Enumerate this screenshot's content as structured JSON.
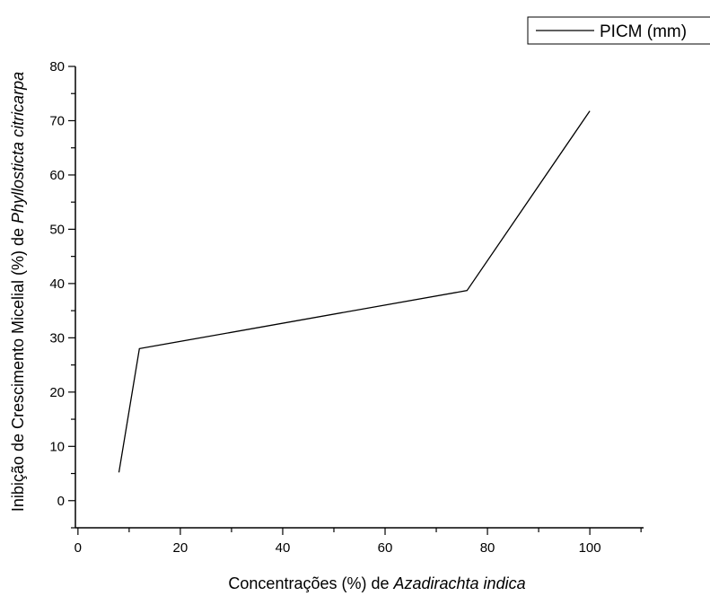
{
  "chart_data": {
    "type": "line",
    "xlabel": {
      "prefix": "Concentrações (%) de ",
      "italic": "Azadirachta indica"
    },
    "ylabel": {
      "prefix": "Inibição de Crescimento Micelial (%) de ",
      "italic": "Phyllosticta citricarpa"
    },
    "xlim": [
      -0.5,
      110.5
    ],
    "ylim": [
      -5,
      80
    ],
    "xticks": [
      0,
      20,
      40,
      60,
      80,
      100
    ],
    "xtick_labels": [
      "0",
      "20",
      "40",
      "60",
      "80",
      "100"
    ],
    "yticks": [
      0,
      10,
      20,
      30,
      40,
      50,
      60,
      70,
      80
    ],
    "ytick_labels": [
      "0",
      "10",
      "20",
      "30",
      "40",
      "50",
      "60",
      "70",
      "80"
    ],
    "legend_position": "top-right",
    "grid": false,
    "line_color": "#000000",
    "series": [
      {
        "name": "PICM (mm)",
        "x": [
          8,
          12,
          76,
          100
        ],
        "y": [
          5.2,
          28,
          38.7,
          71.8
        ]
      }
    ]
  }
}
